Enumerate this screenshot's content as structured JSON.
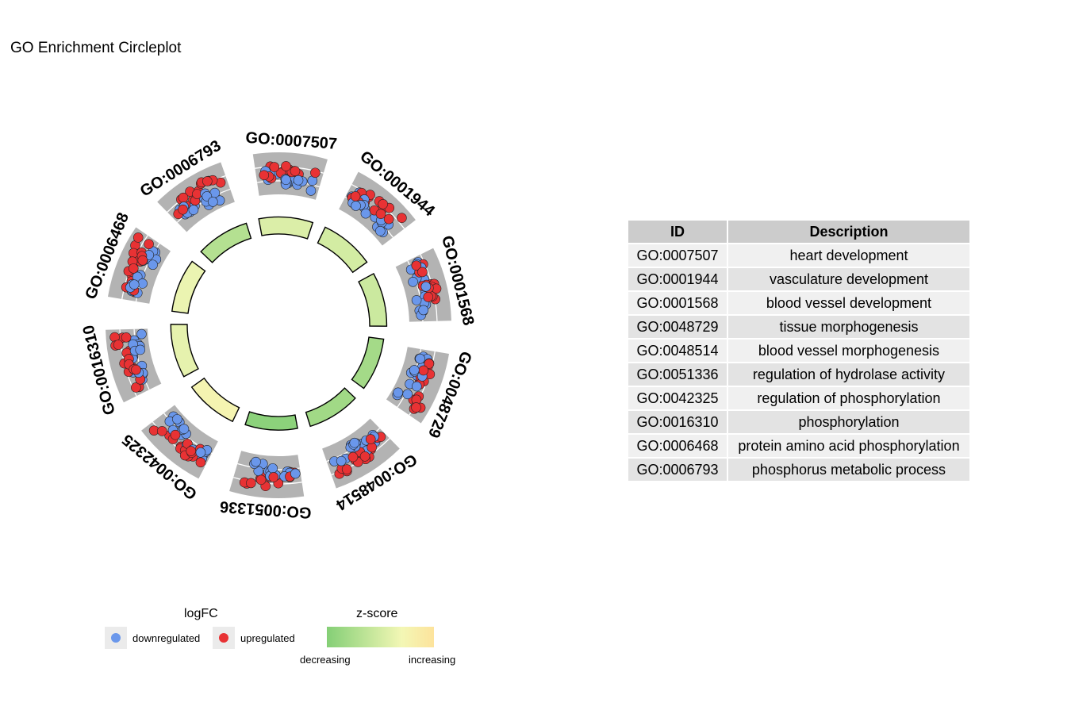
{
  "chart_data": {
    "type": "circleplot",
    "title": "GO Enrichment Circleplot",
    "terms": [
      {
        "id": "GO:0007507",
        "zscore": 0.55
      },
      {
        "id": "GO:0001944",
        "zscore": 0.5
      },
      {
        "id": "GO:0001568",
        "zscore": 0.45
      },
      {
        "id": "GO:0048729",
        "zscore": 0.2
      },
      {
        "id": "GO:0048514",
        "zscore": 0.18
      },
      {
        "id": "GO:0051336",
        "zscore": 0.05
      },
      {
        "id": "GO:0042325",
        "zscore": 0.75
      },
      {
        "id": "GO:0016310",
        "zscore": 0.62
      },
      {
        "id": "GO:0006468",
        "zscore": 0.65
      },
      {
        "id": "GO:0006793",
        "zscore": 0.3
      }
    ],
    "legend": {
      "logfc_title": "logFC",
      "down_label": "downregulated",
      "up_label": "upregulated",
      "zscore_title": "z-score",
      "zscore_low": "decreasing",
      "zscore_high": "increasing"
    },
    "colors": {
      "down": "#6a97eb",
      "up": "#e83234",
      "track": "#b3b3b3",
      "z_low": "#84cf76",
      "z_mid": "#f3f7b5",
      "z_high": "#fde39c"
    }
  },
  "table": {
    "headers": {
      "id": "ID",
      "description": "Description"
    },
    "rows": [
      {
        "id": "GO:0007507",
        "description": "heart development"
      },
      {
        "id": "GO:0001944",
        "description": "vasculature development"
      },
      {
        "id": "GO:0001568",
        "description": "blood vessel development"
      },
      {
        "id": "GO:0048729",
        "description": "tissue morphogenesis"
      },
      {
        "id": "GO:0048514",
        "description": "blood vessel morphogenesis"
      },
      {
        "id": "GO:0051336",
        "description": "regulation of hydrolase activity"
      },
      {
        "id": "GO:0042325",
        "description": "regulation of phosphorylation"
      },
      {
        "id": "GO:0016310",
        "description": "phosphorylation"
      },
      {
        "id": "GO:0006468",
        "description": "protein amino acid phosphorylation"
      },
      {
        "id": "GO:0006793",
        "description": "phosphorus metabolic process"
      }
    ]
  }
}
